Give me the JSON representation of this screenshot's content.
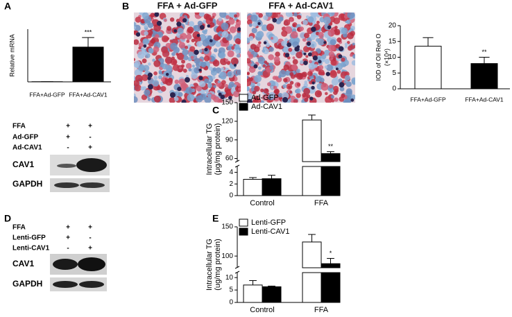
{
  "panel_labels": [
    "A",
    "B",
    "C",
    "D",
    "E"
  ],
  "images": [
    "FFA + Ad-GFP",
    "FFA + Ad-CAV1"
  ],
  "blots": [
    {
      "rows": [
        {
          "label": "FFA",
          "marks": [
            "+",
            "+"
          ]
        },
        {
          "label": "Ad-GFP",
          "marks": [
            "+",
            "-"
          ]
        },
        {
          "label": "Ad-CAV1",
          "marks": [
            "-",
            "+"
          ]
        }
      ],
      "bands": [
        "CAV1",
        "GAPDH"
      ]
    },
    {
      "rows": [
        {
          "label": "FFA",
          "marks": [
            "+",
            "+"
          ]
        },
        {
          "label": "Lenti-GFP",
          "marks": [
            "+",
            "-"
          ]
        },
        {
          "label": "Lenti-CAV1",
          "marks": [
            "-",
            "+"
          ]
        }
      ],
      "bands": [
        "CAV1",
        "GAPDH"
      ]
    }
  ],
  "chart_data": [
    {
      "type": "bar",
      "ylabel": [
        "Relative mRNA"
      ],
      "categories": [
        "FFA+Ad-GFP",
        "FFA+Ad-CAV1"
      ],
      "values": [
        1,
        165
      ],
      "errors": [
        0,
        45
      ],
      "colors": [
        "#000000",
        "#000000"
      ],
      "ylim": [
        0,
        250
      ],
      "annotation": "***"
    },
    {
      "type": "bar",
      "ylabel": [
        "IOD of Oil Red O",
        "(×10⁴)"
      ],
      "categories": [
        "FFA+Ad-GFP",
        "FFA+Ad-CAV1"
      ],
      "values": [
        13.5,
        8
      ],
      "errors": [
        2.7,
        2
      ],
      "colors": [
        "#ffffff",
        "#000000"
      ],
      "ylim": [
        0,
        20
      ],
      "yticks": [
        0,
        5,
        10,
        15,
        20
      ],
      "annotation": "**"
    },
    {
      "type": "bar",
      "ylabel": [
        "Intracellular TG",
        "(μg/mg protein)"
      ],
      "categories": [
        "Control",
        "FFA"
      ],
      "series": [
        {
          "name": "Ad-GFP",
          "color": "#ffffff",
          "values": [
            2.8,
            122
          ],
          "errors": [
            0.3,
            8
          ]
        },
        {
          "name": "Ad-CAV1",
          "color": "#000000",
          "values": [
            2.9,
            68
          ],
          "errors": [
            0.6,
            3
          ]
        }
      ],
      "ylim": [
        0,
        150
      ],
      "ybreak": [
        5,
        55
      ],
      "yticks": [
        0,
        2,
        4,
        60,
        90,
        120,
        150
      ],
      "annotation": "**"
    },
    {
      "type": "bar",
      "ylabel": [
        "Intracellular TG",
        "(ug/mg protein)"
      ],
      "categories": [
        "Control",
        "FFA"
      ],
      "series": [
        {
          "name": "Lenti-GFP",
          "color": "#ffffff",
          "values": [
            7,
            124
          ],
          "errors": [
            1.8,
            13
          ]
        },
        {
          "name": "Lenti-CAV1",
          "color": "#000000",
          "values": [
            6.3,
            87
          ],
          "errors": [
            0.3,
            9
          ]
        }
      ],
      "ylim": [
        0,
        150
      ],
      "ybreak": [
        12,
        80
      ],
      "yticks": [
        0,
        5,
        10,
        100,
        150
      ],
      "annotation": "*"
    }
  ]
}
